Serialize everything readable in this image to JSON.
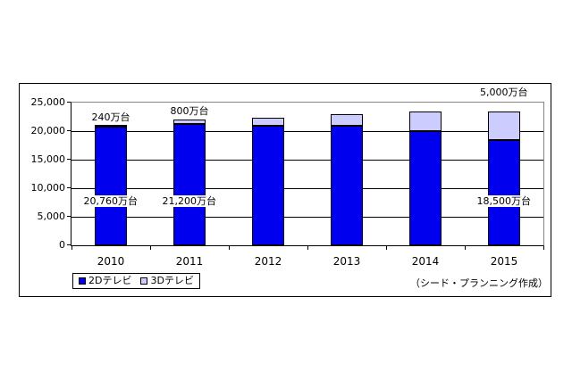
{
  "chart_data": {
    "type": "bar",
    "stacked": true,
    "title": "",
    "categories": [
      "2010",
      "2011",
      "2012",
      "2013",
      "2014",
      "2015"
    ],
    "series": [
      {
        "name": "2Dテレビ",
        "color": "#0000EE",
        "values": [
          20760,
          21200,
          21000,
          21000,
          20000,
          18500
        ]
      },
      {
        "name": "3Dテレビ",
        "color": "#CCCCFF",
        "values": [
          240,
          800,
          1400,
          2000,
          3500,
          5000
        ]
      }
    ],
    "ylim": [
      0,
      25000
    ],
    "ytick_interval": 5000,
    "ytick_labels": [
      "0",
      "5,000",
      "10,000",
      "15,000",
      "20,000",
      "25,000"
    ],
    "grid": true,
    "legend_position": "bottom-left",
    "annotations": [
      {
        "text": "240万台",
        "category_index": 0,
        "placement": "above"
      },
      {
        "text": "800万台",
        "category_index": 1,
        "placement": "above"
      },
      {
        "text": "5,000万台",
        "category_index": 5,
        "placement": "top"
      },
      {
        "text": "20,760万台",
        "category_index": 0,
        "placement": "inside"
      },
      {
        "text": "21,200万台",
        "category_index": 1,
        "placement": "inside"
      },
      {
        "text": "18,500万台",
        "category_index": 5,
        "placement": "inside"
      }
    ],
    "credit": "（シード・プランニング作成）",
    "colors": {
      "background": "#FFFFFF",
      "plot_border": "#848484",
      "grid": "#000000",
      "axis": "#000000"
    }
  }
}
